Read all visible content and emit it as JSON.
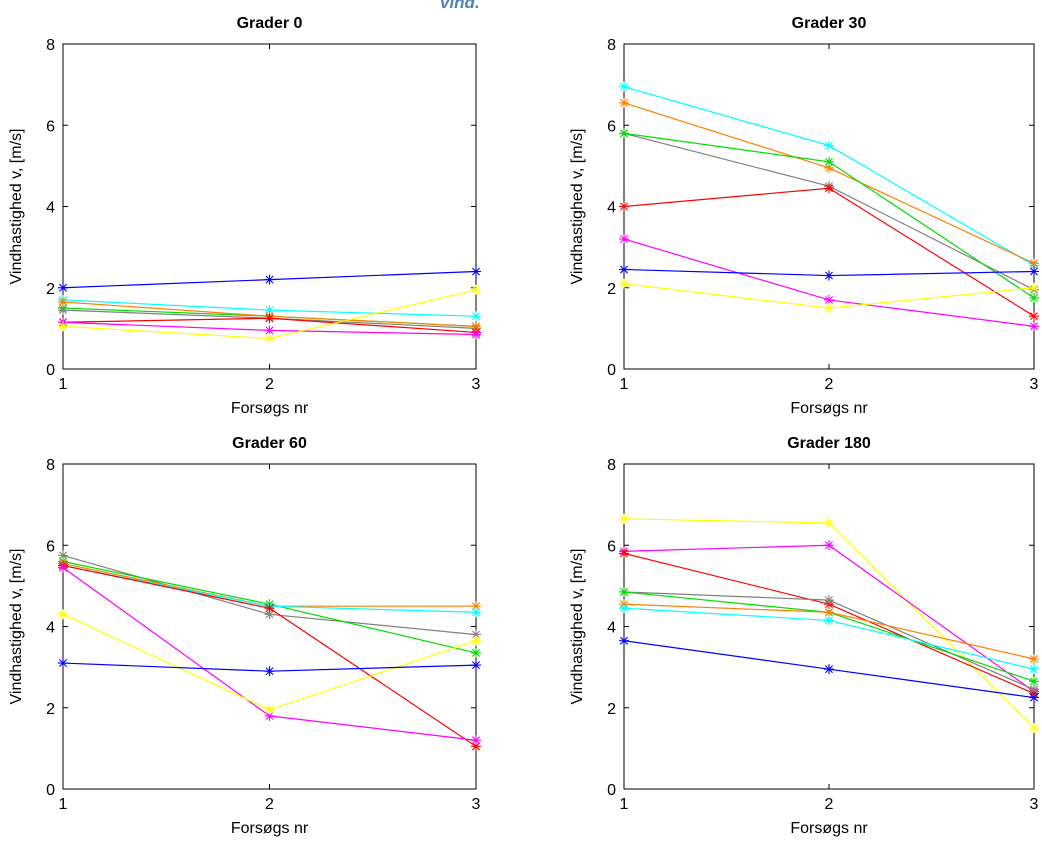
{
  "header_fragment": "vind.",
  "colors": {
    "blue": "#0000ff",
    "cyan": "#00ffff",
    "orange": "#ff8000",
    "green": "#00dd00",
    "gray": "#808080",
    "red": "#ff0000",
    "magenta": "#ff00ff",
    "yellow": "#ffff00"
  },
  "chart_data": [
    {
      "type": "line",
      "title": "Grader 0",
      "xlabel": "Forsøgs nr",
      "ylabel": "Vindhastighed v, [m/s]",
      "x": [
        1,
        2,
        3
      ],
      "xticks": [
        "1",
        "2",
        "3"
      ],
      "yticks": [
        "0",
        "2",
        "4",
        "6",
        "8"
      ],
      "xlim": [
        1,
        3
      ],
      "ylim": [
        0,
        8
      ],
      "marker": "asterisk",
      "grid": false,
      "series": [
        {
          "color": "#0000ff",
          "values": [
            2.0,
            2.2,
            2.4
          ]
        },
        {
          "color": "#00ffff",
          "values": [
            1.7,
            1.45,
            1.3
          ]
        },
        {
          "color": "#00dd00",
          "values": [
            1.5,
            1.3,
            1.05
          ]
        },
        {
          "color": "#808080",
          "values": [
            1.45,
            1.25,
            1.0
          ]
        },
        {
          "color": "#ff8000",
          "values": [
            1.65,
            1.3,
            1.05
          ]
        },
        {
          "color": "#ff0000",
          "values": [
            1.15,
            1.25,
            0.9
          ]
        },
        {
          "color": "#ff00ff",
          "values": [
            1.15,
            0.95,
            0.85
          ]
        },
        {
          "color": "#ffff00",
          "values": [
            1.05,
            0.75,
            1.95
          ]
        }
      ]
    },
    {
      "type": "line",
      "title": "Grader 30",
      "xlabel": "Forsøgs nr",
      "ylabel": "Vindhastighed v, [m/s]",
      "x": [
        1,
        2,
        3
      ],
      "xticks": [
        "1",
        "2",
        "3"
      ],
      "yticks": [
        "0",
        "2",
        "4",
        "6",
        "8"
      ],
      "xlim": [
        1,
        3
      ],
      "ylim": [
        0,
        8
      ],
      "marker": "asterisk",
      "grid": false,
      "series": [
        {
          "color": "#00ffff",
          "values": [
            6.95,
            5.5,
            2.55
          ]
        },
        {
          "color": "#ff8000",
          "values": [
            6.55,
            4.95,
            2.6
          ]
        },
        {
          "color": "#808080",
          "values": [
            5.8,
            4.5,
            1.95
          ]
        },
        {
          "color": "#00dd00",
          "values": [
            5.8,
            5.1,
            1.75
          ]
        },
        {
          "color": "#ff0000",
          "values": [
            4.0,
            4.45,
            1.3
          ]
        },
        {
          "color": "#ff00ff",
          "values": [
            3.2,
            1.7,
            1.05
          ]
        },
        {
          "color": "#0000ff",
          "values": [
            2.45,
            2.3,
            2.4
          ]
        },
        {
          "color": "#ffff00",
          "values": [
            2.1,
            1.5,
            2.0
          ]
        }
      ]
    },
    {
      "type": "line",
      "title": "Grader 60",
      "xlabel": "Forsøgs nr",
      "ylabel": "Vindhastighed v, [m/s]",
      "x": [
        1,
        2,
        3
      ],
      "xticks": [
        "1",
        "2",
        "3"
      ],
      "yticks": [
        "0",
        "2",
        "4",
        "6",
        "8"
      ],
      "xlim": [
        1,
        3
      ],
      "ylim": [
        0,
        8
      ],
      "marker": "asterisk",
      "grid": false,
      "series": [
        {
          "color": "#808080",
          "values": [
            5.75,
            4.3,
            3.8
          ]
        },
        {
          "color": "#00dd00",
          "values": [
            5.6,
            4.55,
            3.35
          ]
        },
        {
          "color": "#ff8000",
          "values": [
            5.55,
            4.5,
            4.5
          ]
        },
        {
          "color": "#00ffff",
          "values": [
            5.5,
            4.5,
            4.35
          ]
        },
        {
          "color": "#ff0000",
          "values": [
            5.5,
            4.45,
            1.05
          ]
        },
        {
          "color": "#ff00ff",
          "values": [
            5.45,
            1.8,
            1.2
          ]
        },
        {
          "color": "#ffff00",
          "values": [
            4.3,
            1.95,
            3.65
          ]
        },
        {
          "color": "#0000ff",
          "values": [
            3.1,
            2.9,
            3.05
          ]
        }
      ]
    },
    {
      "type": "line",
      "title": "Grader 180",
      "xlabel": "Forsøgs nr",
      "ylabel": "Vindhastighed v, [m/s]",
      "x": [
        1,
        2,
        3
      ],
      "xticks": [
        "1",
        "2",
        "3"
      ],
      "yticks": [
        "0",
        "2",
        "4",
        "6",
        "8"
      ],
      "xlim": [
        1,
        3
      ],
      "ylim": [
        0,
        8
      ],
      "marker": "asterisk",
      "grid": false,
      "series": [
        {
          "color": "#ffff00",
          "values": [
            6.65,
            6.55,
            1.5
          ]
        },
        {
          "color": "#ff00ff",
          "values": [
            5.85,
            6.0,
            2.4
          ]
        },
        {
          "color": "#ff0000",
          "values": [
            5.8,
            4.55,
            2.35
          ]
        },
        {
          "color": "#808080",
          "values": [
            4.85,
            4.65,
            2.45
          ]
        },
        {
          "color": "#00dd00",
          "values": [
            4.85,
            4.35,
            2.65
          ]
        },
        {
          "color": "#ff8000",
          "values": [
            4.55,
            4.35,
            3.2
          ]
        },
        {
          "color": "#00ffff",
          "values": [
            4.45,
            4.15,
            2.95
          ]
        },
        {
          "color": "#0000ff",
          "values": [
            3.65,
            2.95,
            2.25
          ]
        }
      ]
    }
  ]
}
